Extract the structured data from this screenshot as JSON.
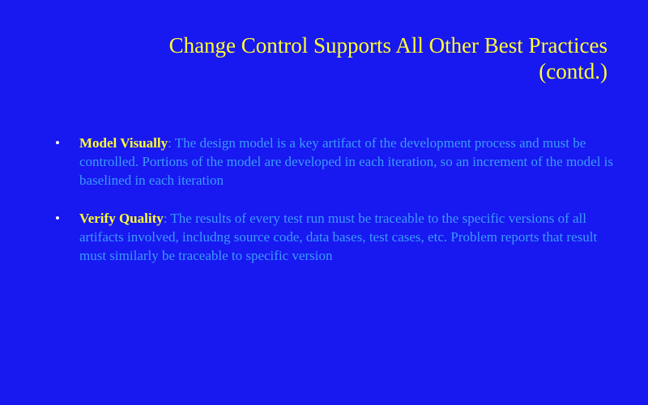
{
  "slide": {
    "title_line1": "Change Control Supports All Other Best Practices",
    "title_line2": "(contd.)",
    "bullets": [
      {
        "heading": "Model Visually",
        "text": ": The design model is a key artifact of the development process and must be controlled. Portions of the model are developed in each iteration, so an increment of the model is baselined in each iteration"
      },
      {
        "heading": "Verify Quality",
        "text": ": The results of every test run must be traceable to the specific versions of all artifacts involved, includng source code, data bases, test cases, etc. Problem reports that result must similarly be traceable to specific version"
      }
    ],
    "bullet_symbol": "•",
    "colors": {
      "background": "#1818f0",
      "title": "#ffff33",
      "heading": "#ffff33",
      "body_text": "#3a9bff",
      "bullet": "#ffffff"
    }
  }
}
